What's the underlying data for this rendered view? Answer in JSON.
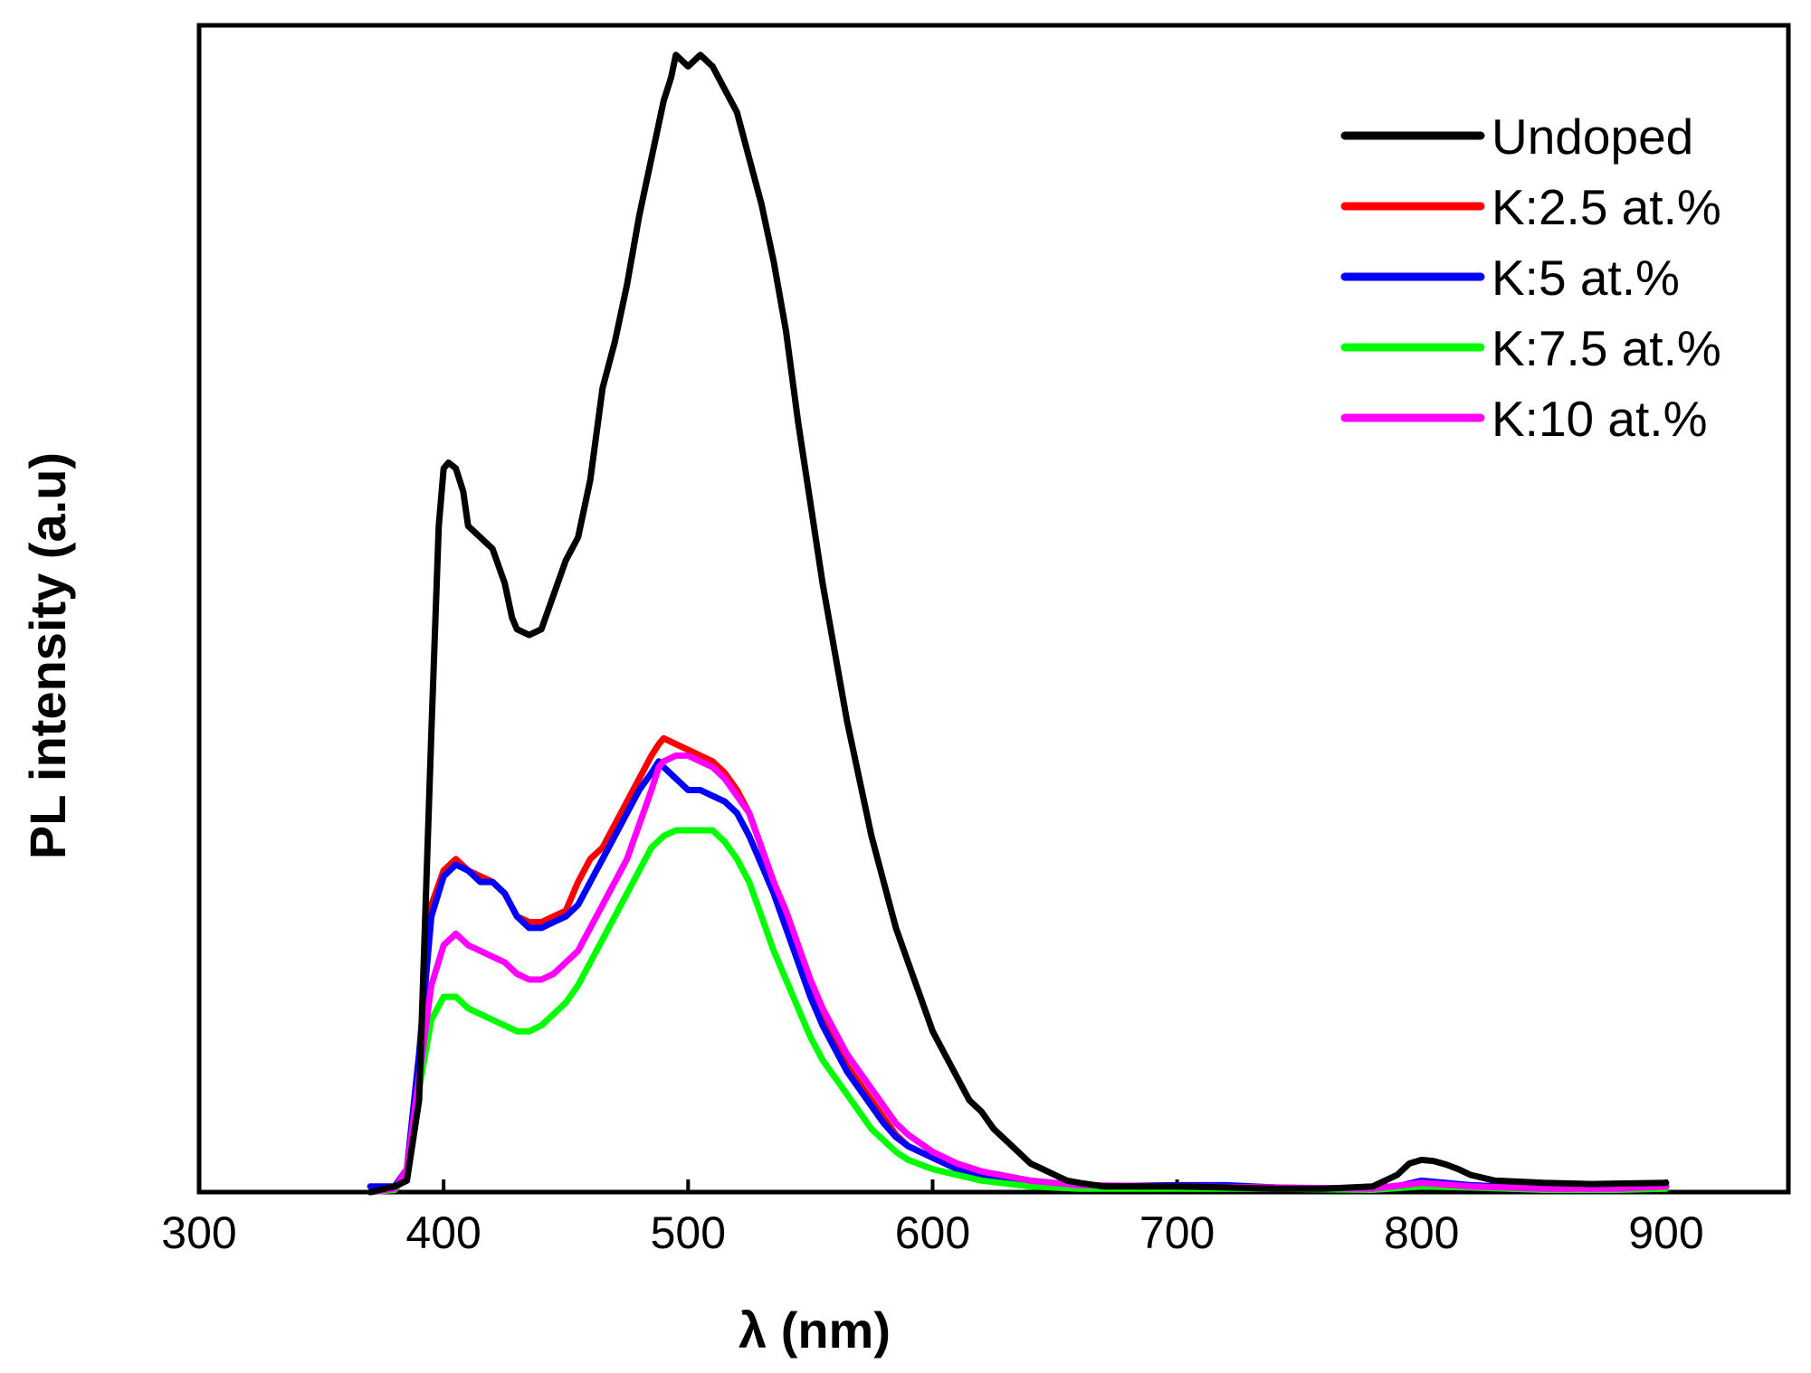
{
  "chart_data": {
    "type": "line",
    "title": "",
    "xlabel": "λ (nm)",
    "ylabel": "PL intensity (a.u)",
    "xlim": [
      300,
      950
    ],
    "ylim": [
      0,
      100
    ],
    "xticks": [
      300,
      400,
      500,
      600,
      700,
      800,
      900
    ],
    "xtick_labels": [
      "300",
      "400",
      "500",
      "600",
      "700",
      "800",
      "900"
    ],
    "legend_position": "top-right",
    "series": [
      {
        "name": "Undoped",
        "color": "#000000",
        "points": [
          [
            370,
            0
          ],
          [
            380,
            0.5
          ],
          [
            385,
            1
          ],
          [
            390,
            8
          ],
          [
            395,
            40
          ],
          [
            398,
            58
          ],
          [
            400,
            63
          ],
          [
            402,
            63.5
          ],
          [
            405,
            63
          ],
          [
            408,
            61
          ],
          [
            410,
            58
          ],
          [
            415,
            57
          ],
          [
            420,
            56
          ],
          [
            425,
            53
          ],
          [
            428,
            50
          ],
          [
            430,
            49
          ],
          [
            435,
            48.5
          ],
          [
            440,
            49
          ],
          [
            445,
            52
          ],
          [
            450,
            55
          ],
          [
            455,
            57
          ],
          [
            460,
            62
          ],
          [
            465,
            70
          ],
          [
            470,
            74
          ],
          [
            475,
            79
          ],
          [
            480,
            85
          ],
          [
            485,
            90
          ],
          [
            490,
            95
          ],
          [
            493,
            97
          ],
          [
            495,
            99
          ],
          [
            500,
            98
          ],
          [
            505,
            99
          ],
          [
            510,
            98
          ],
          [
            515,
            96
          ],
          [
            520,
            94
          ],
          [
            525,
            90
          ],
          [
            530,
            86
          ],
          [
            535,
            81
          ],
          [
            540,
            75
          ],
          [
            545,
            67
          ],
          [
            550,
            60
          ],
          [
            555,
            53
          ],
          [
            560,
            47
          ],
          [
            565,
            41
          ],
          [
            570,
            36
          ],
          [
            575,
            31
          ],
          [
            580,
            27
          ],
          [
            585,
            23
          ],
          [
            590,
            20
          ],
          [
            595,
            17
          ],
          [
            600,
            14
          ],
          [
            605,
            12
          ],
          [
            610,
            10
          ],
          [
            615,
            8
          ],
          [
            620,
            7
          ],
          [
            625,
            5.5
          ],
          [
            630,
            4.5
          ],
          [
            635,
            3.5
          ],
          [
            640,
            2.5
          ],
          [
            645,
            2
          ],
          [
            650,
            1.5
          ],
          [
            655,
            1
          ],
          [
            660,
            0.8
          ],
          [
            670,
            0.5
          ],
          [
            680,
            0.5
          ],
          [
            700,
            0.5
          ],
          [
            720,
            0.4
          ],
          [
            740,
            0.3
          ],
          [
            760,
            0.3
          ],
          [
            780,
            0.5
          ],
          [
            790,
            1.5
          ],
          [
            795,
            2.5
          ],
          [
            800,
            2.8
          ],
          [
            805,
            2.7
          ],
          [
            810,
            2.4
          ],
          [
            815,
            2
          ],
          [
            820,
            1.5
          ],
          [
            830,
            1
          ],
          [
            850,
            0.8
          ],
          [
            870,
            0.7
          ],
          [
            900,
            0.8
          ]
        ]
      },
      {
        "name": "K:2.5 at.%",
        "color": "#ff0000",
        "points": [
          [
            370,
            0
          ],
          [
            380,
            0.5
          ],
          [
            385,
            2
          ],
          [
            390,
            12
          ],
          [
            395,
            25
          ],
          [
            400,
            28
          ],
          [
            405,
            29
          ],
          [
            410,
            28
          ],
          [
            415,
            27.5
          ],
          [
            420,
            27
          ],
          [
            425,
            26
          ],
          [
            430,
            24
          ],
          [
            435,
            23.5
          ],
          [
            440,
            23.5
          ],
          [
            445,
            24
          ],
          [
            450,
            24.5
          ],
          [
            455,
            27
          ],
          [
            460,
            29
          ],
          [
            465,
            30
          ],
          [
            470,
            32
          ],
          [
            475,
            34
          ],
          [
            480,
            36
          ],
          [
            485,
            38
          ],
          [
            488,
            39
          ],
          [
            490,
            39.5
          ],
          [
            495,
            39
          ],
          [
            500,
            38.5
          ],
          [
            505,
            38
          ],
          [
            510,
            37.5
          ],
          [
            515,
            36.5
          ],
          [
            520,
            35
          ],
          [
            525,
            33
          ],
          [
            530,
            30
          ],
          [
            535,
            27
          ],
          [
            540,
            24
          ],
          [
            545,
            21
          ],
          [
            550,
            18
          ],
          [
            555,
            15
          ],
          [
            560,
            13
          ],
          [
            565,
            11
          ],
          [
            570,
            9.5
          ],
          [
            575,
            8
          ],
          [
            580,
            6.5
          ],
          [
            585,
            5
          ],
          [
            590,
            4
          ],
          [
            600,
            3
          ],
          [
            610,
            2
          ],
          [
            620,
            1.5
          ],
          [
            640,
            0.8
          ],
          [
            660,
            0.5
          ],
          [
            700,
            0.5
          ],
          [
            720,
            0.5
          ],
          [
            740,
            0.4
          ],
          [
            760,
            0.3
          ],
          [
            790,
            0.5
          ],
          [
            800,
            0.8
          ],
          [
            820,
            0.6
          ],
          [
            850,
            0.3
          ],
          [
            880,
            0.3
          ],
          [
            900,
            0.5
          ]
        ]
      },
      {
        "name": "K:5 at.%",
        "color": "#0000ff",
        "points": [
          [
            370,
            0.5
          ],
          [
            380,
            0.5
          ],
          [
            385,
            2
          ],
          [
            390,
            12
          ],
          [
            395,
            24
          ],
          [
            400,
            27.5
          ],
          [
            405,
            28.5
          ],
          [
            410,
            28
          ],
          [
            415,
            27
          ],
          [
            420,
            27
          ],
          [
            425,
            26
          ],
          [
            430,
            24
          ],
          [
            435,
            23
          ],
          [
            440,
            23
          ],
          [
            445,
            23.5
          ],
          [
            450,
            24
          ],
          [
            455,
            25
          ],
          [
            460,
            27
          ],
          [
            465,
            29
          ],
          [
            470,
            31
          ],
          [
            475,
            33
          ],
          [
            480,
            35
          ],
          [
            485,
            36.5
          ],
          [
            488,
            37.5
          ],
          [
            490,
            37
          ],
          [
            495,
            36
          ],
          [
            500,
            35
          ],
          [
            505,
            35
          ],
          [
            510,
            34.5
          ],
          [
            515,
            34
          ],
          [
            520,
            33
          ],
          [
            525,
            31
          ],
          [
            530,
            28.5
          ],
          [
            535,
            26
          ],
          [
            540,
            23
          ],
          [
            545,
            20
          ],
          [
            550,
            17
          ],
          [
            555,
            14.5
          ],
          [
            560,
            12.5
          ],
          [
            565,
            10.5
          ],
          [
            570,
            9
          ],
          [
            575,
            7.5
          ],
          [
            580,
            6
          ],
          [
            585,
            4.8
          ],
          [
            590,
            4
          ],
          [
            600,
            3
          ],
          [
            610,
            2
          ],
          [
            620,
            1.5
          ],
          [
            640,
            0.8
          ],
          [
            660,
            0.5
          ],
          [
            700,
            0.6
          ],
          [
            720,
            0.6
          ],
          [
            740,
            0.4
          ],
          [
            760,
            0.3
          ],
          [
            790,
            0.5
          ],
          [
            800,
            1
          ],
          [
            820,
            0.6
          ],
          [
            850,
            0.3
          ],
          [
            880,
            0.3
          ],
          [
            900,
            0.5
          ]
        ]
      },
      {
        "name": "K:7.5 at.%",
        "color": "#00ff00",
        "points": [
          [
            370,
            0
          ],
          [
            380,
            0.2
          ],
          [
            385,
            1.5
          ],
          [
            390,
            9
          ],
          [
            395,
            15
          ],
          [
            400,
            17
          ],
          [
            405,
            17
          ],
          [
            410,
            16
          ],
          [
            415,
            15.5
          ],
          [
            420,
            15
          ],
          [
            425,
            14.5
          ],
          [
            430,
            14
          ],
          [
            435,
            14
          ],
          [
            440,
            14.5
          ],
          [
            445,
            15.5
          ],
          [
            450,
            16.5
          ],
          [
            455,
            18
          ],
          [
            460,
            20
          ],
          [
            465,
            22
          ],
          [
            470,
            24
          ],
          [
            475,
            26
          ],
          [
            480,
            28
          ],
          [
            485,
            30
          ],
          [
            490,
            31
          ],
          [
            495,
            31.5
          ],
          [
            500,
            31.5
          ],
          [
            505,
            31.5
          ],
          [
            510,
            31.5
          ],
          [
            515,
            30.5
          ],
          [
            520,
            29
          ],
          [
            525,
            27
          ],
          [
            530,
            24
          ],
          [
            535,
            21
          ],
          [
            540,
            18.5
          ],
          [
            545,
            16
          ],
          [
            550,
            13.5
          ],
          [
            555,
            11.5
          ],
          [
            560,
            10
          ],
          [
            565,
            8.5
          ],
          [
            570,
            7
          ],
          [
            575,
            5.5
          ],
          [
            580,
            4.5
          ],
          [
            585,
            3.5
          ],
          [
            590,
            2.8
          ],
          [
            600,
            2
          ],
          [
            610,
            1.5
          ],
          [
            620,
            1
          ],
          [
            640,
            0.5
          ],
          [
            660,
            0.3
          ],
          [
            700,
            0.3
          ],
          [
            740,
            0.3
          ],
          [
            780,
            0.2
          ],
          [
            800,
            0.5
          ],
          [
            820,
            0.4
          ],
          [
            850,
            0.2
          ],
          [
            880,
            0.2
          ],
          [
            900,
            0.3
          ]
        ]
      },
      {
        "name": "K:10 at.%",
        "color": "#ff00ff",
        "points": [
          [
            370,
            0
          ],
          [
            380,
            0.3
          ],
          [
            385,
            2
          ],
          [
            390,
            10
          ],
          [
            395,
            18
          ],
          [
            400,
            21.5
          ],
          [
            405,
            22.5
          ],
          [
            410,
            21.5
          ],
          [
            415,
            21
          ],
          [
            420,
            20.5
          ],
          [
            425,
            20
          ],
          [
            430,
            19
          ],
          [
            435,
            18.5
          ],
          [
            440,
            18.5
          ],
          [
            445,
            19
          ],
          [
            450,
            20
          ],
          [
            455,
            21
          ],
          [
            460,
            23
          ],
          [
            465,
            25
          ],
          [
            470,
            27
          ],
          [
            475,
            29
          ],
          [
            480,
            32
          ],
          [
            485,
            35
          ],
          [
            488,
            37
          ],
          [
            490,
            37.5
          ],
          [
            495,
            38
          ],
          [
            500,
            38
          ],
          [
            505,
            37.5
          ],
          [
            510,
            37
          ],
          [
            515,
            36
          ],
          [
            520,
            34.5
          ],
          [
            525,
            33
          ],
          [
            530,
            30
          ],
          [
            535,
            27
          ],
          [
            540,
            24.5
          ],
          [
            545,
            21.5
          ],
          [
            550,
            18.5
          ],
          [
            555,
            16
          ],
          [
            560,
            14
          ],
          [
            565,
            12
          ],
          [
            570,
            10.5
          ],
          [
            575,
            9
          ],
          [
            580,
            7.5
          ],
          [
            585,
            6
          ],
          [
            590,
            5
          ],
          [
            600,
            3.5
          ],
          [
            610,
            2.5
          ],
          [
            620,
            1.8
          ],
          [
            640,
            1
          ],
          [
            660,
            0.6
          ],
          [
            700,
            0.5
          ],
          [
            740,
            0.4
          ],
          [
            780,
            0.3
          ],
          [
            800,
            0.8
          ],
          [
            820,
            0.5
          ],
          [
            850,
            0.3
          ],
          [
            880,
            0.3
          ],
          [
            900,
            0.5
          ]
        ]
      }
    ]
  }
}
